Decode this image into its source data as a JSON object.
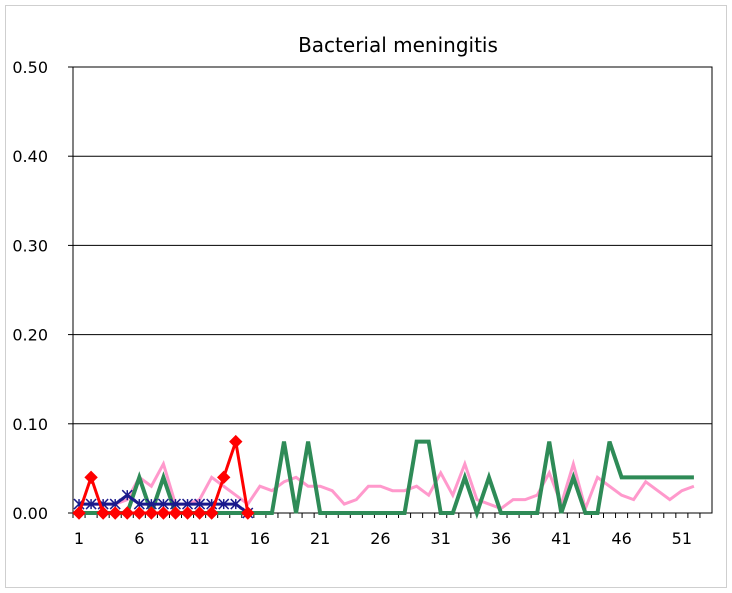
{
  "chart_data": {
    "type": "line",
    "title": "Bacterial meningitis",
    "xlabel": "",
    "ylabel": "",
    "ylim": [
      0,
      0.5
    ],
    "xlim": [
      1,
      53
    ],
    "y_ticks": [
      "0.00",
      "0.10",
      "0.20",
      "0.30",
      "0.40",
      "0.50"
    ],
    "y_tick_values": [
      0,
      0.1,
      0.2,
      0.3,
      0.4,
      0.5
    ],
    "x_ticks": [
      "1",
      "6",
      "11",
      "16",
      "21",
      "26",
      "31",
      "36",
      "41",
      "46",
      "51"
    ],
    "x_tick_values": [
      1,
      6,
      11,
      16,
      21,
      26,
      31,
      36,
      41,
      46,
      51
    ],
    "grid": "horizontal",
    "series": [
      {
        "color": "#ff99cc",
        "marker": "none",
        "x": [
          1,
          2,
          3,
          4,
          5,
          6,
          7,
          8,
          9,
          10,
          11,
          12,
          13,
          14,
          15,
          16,
          17,
          18,
          19,
          20,
          21,
          22,
          23,
          24,
          25,
          26,
          27,
          28,
          29,
          30,
          31,
          32,
          33,
          34,
          35,
          36,
          37,
          38,
          39,
          40,
          41,
          42,
          43,
          44,
          45,
          46,
          47,
          48,
          49,
          50,
          51,
          52
        ],
        "values": [
          0.01,
          0.01,
          0.01,
          0.01,
          0.015,
          0.04,
          0.03,
          0.055,
          0.01,
          0.01,
          0.015,
          0.04,
          0.03,
          0.02,
          0.01,
          0.03,
          0.025,
          0.035,
          0.04,
          0.03,
          0.03,
          0.025,
          0.01,
          0.015,
          0.03,
          0.03,
          0.025,
          0.025,
          0.03,
          0.02,
          0.045,
          0.02,
          0.055,
          0.015,
          0.01,
          0.005,
          0.015,
          0.015,
          0.02,
          0.045,
          0.01,
          0.055,
          0.005,
          0.04,
          0.03,
          0.02,
          0.015,
          0.035,
          0.025,
          0.015,
          0.025,
          0.03
        ]
      },
      {
        "color": "#2e8b57",
        "marker": "none",
        "x": [
          1,
          2,
          3,
          4,
          5,
          6,
          7,
          8,
          9,
          10,
          11,
          12,
          13,
          14,
          15,
          16,
          17,
          18,
          19,
          20,
          21,
          22,
          23,
          24,
          25,
          26,
          27,
          28,
          29,
          30,
          31,
          32,
          33,
          34,
          35,
          36,
          37,
          38,
          39,
          40,
          41,
          42,
          43,
          44,
          45,
          46,
          47,
          48,
          49,
          50,
          51,
          52
        ],
        "values": [
          0,
          0,
          0,
          0,
          0,
          0.04,
          0,
          0.04,
          0,
          0,
          0,
          0,
          0,
          0,
          0,
          0,
          0,
          0.08,
          0,
          0.08,
          0,
          0,
          0,
          0,
          0,
          0,
          0,
          0,
          0.08,
          0.08,
          0,
          0,
          0.04,
          0,
          0.04,
          0,
          0,
          0,
          0,
          0.08,
          0,
          0.04,
          0,
          0,
          0.08,
          0.04,
          0.04,
          0.04,
          0.04,
          0.04,
          0.04,
          0.04
        ]
      },
      {
        "color": "#1a1a8c",
        "marker": "asterisk",
        "x": [
          1,
          2,
          3,
          4,
          5,
          6,
          7,
          8,
          9,
          10,
          11,
          12,
          13,
          14,
          15
        ],
        "values": [
          0.01,
          0.01,
          0.01,
          0.01,
          0.02,
          0.01,
          0.01,
          0.01,
          0.01,
          0.01,
          0.01,
          0.01,
          0.01,
          0.01,
          0.0
        ]
      },
      {
        "color": "#ff0000",
        "marker": "diamond",
        "x": [
          1,
          2,
          3,
          4,
          5,
          6,
          7,
          8,
          9,
          10,
          11,
          12,
          13,
          14,
          15
        ],
        "values": [
          0,
          0.04,
          0,
          0,
          0,
          0,
          0,
          0,
          0,
          0,
          0,
          0,
          0.04,
          0.08,
          0
        ]
      }
    ]
  }
}
